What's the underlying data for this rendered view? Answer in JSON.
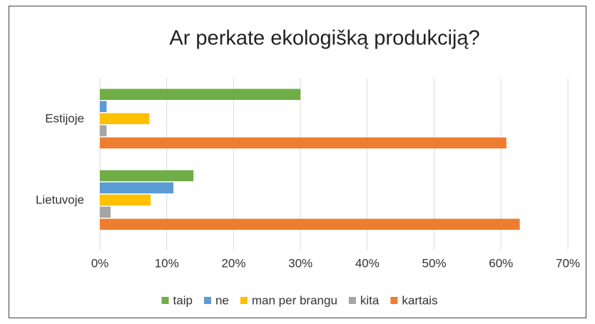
{
  "chart_data": {
    "type": "hbar",
    "title": "Ar perkate ekologišką produkciją?",
    "categories": [
      "Estijoje",
      "Lietuvoje"
    ],
    "series": [
      {
        "name": "taip",
        "color": "#70ad47",
        "values": [
          30,
          14
        ]
      },
      {
        "name": "ne",
        "color": "#5b9bd5",
        "values": [
          1,
          11
        ]
      },
      {
        "name": "man per brangu",
        "color": "#ffc000",
        "values": [
          7.4,
          7.6
        ]
      },
      {
        "name": "kita",
        "color": "#a5a5a5",
        "values": [
          1,
          1.6
        ]
      },
      {
        "name": "kartais",
        "color": "#ed7d31",
        "values": [
          60.8,
          62.8
        ]
      }
    ],
    "xlim": [
      0,
      70
    ],
    "xticks": [
      {
        "value": 0,
        "label": "0%"
      },
      {
        "value": 10,
        "label": "10%"
      },
      {
        "value": 20,
        "label": "20%"
      },
      {
        "value": 30,
        "label": "30%"
      },
      {
        "value": 40,
        "label": "40%"
      },
      {
        "value": 50,
        "label": "50%"
      },
      {
        "value": 60,
        "label": "60%"
      },
      {
        "value": 70,
        "label": "70%"
      }
    ],
    "grid": true,
    "legend": "bottom"
  }
}
